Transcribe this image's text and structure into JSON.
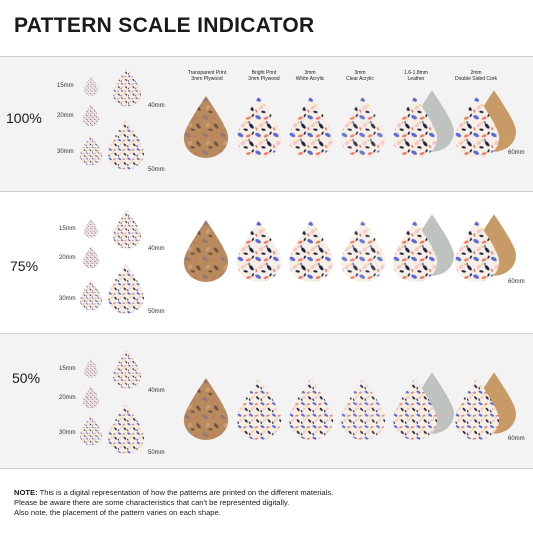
{
  "title": "PATTERN SCALE INDICATOR",
  "materials": [
    {
      "line1": "Transparent Print",
      "line2": "3mm Plywood"
    },
    {
      "line1": "Bright Print",
      "line2": "3mm Plywood"
    },
    {
      "line1": "3mm",
      "line2": "White Acrylic"
    },
    {
      "line1": "3mm",
      "line2": "Clear Acrylic"
    },
    {
      "line1": "1.6-1.8mm",
      "line2": "Leather"
    },
    {
      "line1": "2mm",
      "line2": "Double Sided Cork"
    }
  ],
  "rows": [
    {
      "scale": "100%"
    },
    {
      "scale": "75%"
    },
    {
      "scale": "50%"
    }
  ],
  "sizes": {
    "s15": "15mm",
    "s20": "20mm",
    "s30": "30mm",
    "s40": "40mm",
    "s50": "50mm",
    "s60": "60mm"
  },
  "colors": {
    "navy": "#1f2340",
    "blue": "#5b6ad6",
    "coral": "#f07a62",
    "pink": "#f7c6c8",
    "cream": "#f6efe6",
    "yellow": "#f2c94c",
    "wood": "#b98a5e",
    "cork": "#c79a66",
    "leather": "#bfc3bf"
  },
  "note": {
    "label": "NOTE:",
    "line1": " This is a digital representation of how the patterns are printed on the different materials.",
    "line2": "Please be aware there are some characteristics that can't be represented digitally.",
    "line3": "Also note, the placement of the pattern varies on each shape."
  }
}
